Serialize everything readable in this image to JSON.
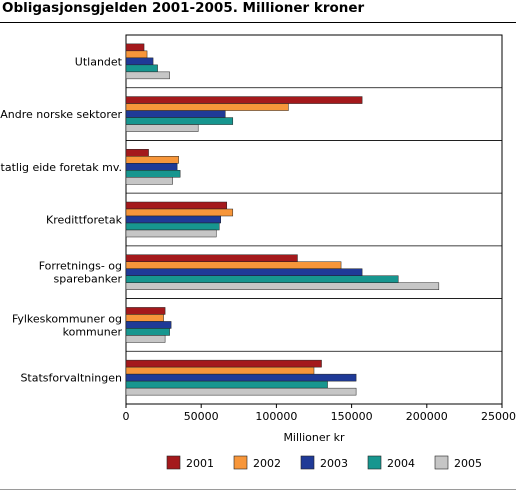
{
  "chart_data": {
    "type": "bar",
    "orientation": "horizontal",
    "title": "Obligasjonsgjelden 2001-2005. Millioner kroner",
    "xlabel": "Millioner kr",
    "ylabel": "",
    "xlim": [
      0,
      250000
    ],
    "x_ticks": [
      0,
      50000,
      100000,
      150000,
      200000,
      250000
    ],
    "x_tick_labels": [
      "0",
      "50000",
      "100000",
      "150000",
      "200000",
      "250000"
    ],
    "categories": [
      [
        "Utlandet"
      ],
      [
        "Andre norske sektorer"
      ],
      [
        "Statlig eide foretak mv."
      ],
      [
        "Kredittforetak"
      ],
      [
        "Forretnings- og",
        "sparebanker"
      ],
      [
        "Fylkeskommuner og",
        "kommuner"
      ],
      [
        "Statsforvaltningen"
      ]
    ],
    "series": [
      {
        "name": "2001",
        "color": "#a4191c",
        "values": [
          12000,
          157000,
          15000,
          67000,
          114000,
          26000,
          130000
        ]
      },
      {
        "name": "2002",
        "color": "#f7963a",
        "values": [
          14000,
          108000,
          35000,
          71000,
          143000,
          25000,
          125000
        ]
      },
      {
        "name": "2003",
        "color": "#1f3a97",
        "values": [
          18000,
          66000,
          34000,
          63000,
          157000,
          30000,
          153000
        ]
      },
      {
        "name": "2004",
        "color": "#17968f",
        "values": [
          21000,
          71000,
          36000,
          62000,
          181000,
          29000,
          134000
        ]
      },
      {
        "name": "2005",
        "color": "#c6c6c6",
        "values": [
          29000,
          48000,
          31000,
          60000,
          208000,
          26000,
          153000
        ]
      }
    ],
    "grid": false,
    "legend_position": "bottom"
  }
}
